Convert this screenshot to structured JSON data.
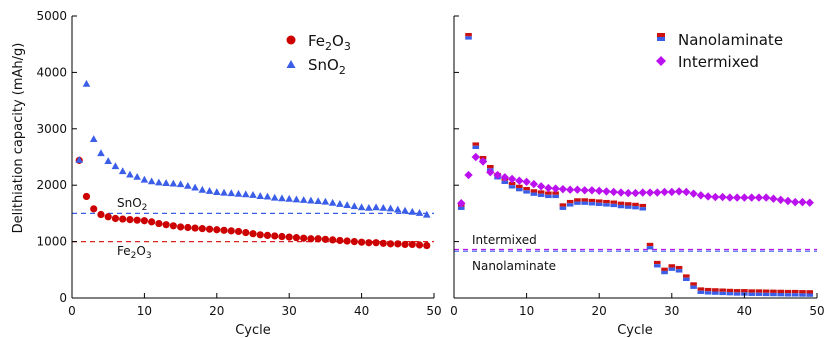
{
  "chart_data": [
    {
      "type": "scatter",
      "ylabel": "Delithiation capacity (mAh/g)",
      "xlabel": "Cycle",
      "xlim": [
        0,
        50
      ],
      "ylim": [
        0,
        5000
      ],
      "xticks": [
        "0",
        "10",
        "20",
        "30",
        "40",
        "50"
      ],
      "yticks": [
        "0",
        "1000",
        "2000",
        "3000",
        "4000",
        "5000"
      ],
      "legend_position": "top-right",
      "series": [
        {
          "name_base": "Fe",
          "name_sub1": "2",
          "name_mid": "O",
          "name_sub2": "3",
          "marker": "circle",
          "color": "#cc0000",
          "x": [
            1,
            2,
            3,
            4,
            5,
            6,
            7,
            8,
            9,
            10,
            11,
            12,
            13,
            14,
            15,
            16,
            17,
            18,
            19,
            20,
            21,
            22,
            23,
            24,
            25,
            26,
            27,
            28,
            29,
            30,
            31,
            32,
            33,
            34,
            35,
            36,
            37,
            38,
            39,
            40,
            41,
            42,
            43,
            44,
            45,
            46,
            47,
            48,
            49
          ],
          "y": [
            2440,
            1800,
            1580,
            1480,
            1440,
            1410,
            1400,
            1390,
            1380,
            1370,
            1350,
            1320,
            1300,
            1280,
            1260,
            1250,
            1240,
            1230,
            1220,
            1210,
            1200,
            1190,
            1180,
            1160,
            1140,
            1120,
            1110,
            1100,
            1090,
            1080,
            1070,
            1060,
            1050,
            1050,
            1040,
            1030,
            1020,
            1010,
            1000,
            990,
            980,
            980,
            970,
            960,
            960,
            950,
            950,
            940,
            930
          ]
        },
        {
          "name_base": "SnO",
          "name_sub1": "2",
          "marker": "triangle",
          "color": "#3a5ee8",
          "x": [
            1,
            2,
            3,
            4,
            5,
            6,
            7,
            8,
            9,
            10,
            11,
            12,
            13,
            14,
            15,
            16,
            17,
            18,
            19,
            20,
            21,
            22,
            23,
            24,
            25,
            26,
            27,
            28,
            29,
            30,
            31,
            32,
            33,
            34,
            35,
            36,
            37,
            38,
            39,
            40,
            41,
            42,
            43,
            44,
            45,
            46,
            47,
            48,
            49
          ],
          "y": [
            2450,
            3800,
            2820,
            2570,
            2430,
            2340,
            2250,
            2190,
            2150,
            2100,
            2070,
            2050,
            2040,
            2030,
            2020,
            1990,
            1960,
            1920,
            1900,
            1880,
            1870,
            1860,
            1850,
            1840,
            1830,
            1810,
            1800,
            1780,
            1770,
            1760,
            1750,
            1740,
            1730,
            1720,
            1710,
            1690,
            1670,
            1650,
            1630,
            1610,
            1600,
            1610,
            1600,
            1590,
            1570,
            1550,
            1530,
            1510,
            1480
          ]
        }
      ],
      "reference_lines": [
        {
          "value": 1500,
          "color": "#3a5ee8",
          "label_base": "SnO",
          "label_sub": "2"
        },
        {
          "value": 1000,
          "color": "#dd2222",
          "label_base": "Fe",
          "label_sub1": "2",
          "label_mid": "O",
          "label_sub2": "3"
        }
      ]
    },
    {
      "type": "scatter",
      "xlabel": "Cycle",
      "xlim": [
        0,
        50
      ],
      "ylim": [
        0,
        5000
      ],
      "xticks": [
        "0",
        "10",
        "20",
        "30",
        "40",
        "50"
      ],
      "legend_position": "top-right",
      "series": [
        {
          "name": "Nanolaminate",
          "marker": "square",
          "color_top": "#cc1111",
          "color_bottom": "#3a5ee8",
          "x": [
            1,
            2,
            3,
            4,
            5,
            6,
            7,
            8,
            9,
            10,
            11,
            12,
            13,
            14,
            15,
            16,
            17,
            18,
            19,
            20,
            21,
            22,
            23,
            24,
            25,
            26,
            27,
            28,
            29,
            30,
            31,
            32,
            33,
            34,
            35,
            36,
            37,
            38,
            39,
            40,
            41,
            42,
            43,
            44,
            45,
            46,
            47,
            48,
            49
          ],
          "y": [
            1620,
            4640,
            2700,
            2460,
            2300,
            2160,
            2080,
            2000,
            1950,
            1910,
            1870,
            1850,
            1830,
            1830,
            1620,
            1680,
            1710,
            1710,
            1700,
            1690,
            1680,
            1670,
            1650,
            1640,
            1630,
            1610,
            920,
            600,
            480,
            540,
            510,
            360,
            220,
            130,
            120,
            115,
            110,
            105,
            100,
            100,
            95,
            95,
            92,
            90,
            88,
            85,
            85,
            82,
            80
          ]
        },
        {
          "name": "Intermixed",
          "marker": "diamond",
          "color": "#bb11ee",
          "x": [
            1,
            2,
            3,
            4,
            5,
            6,
            7,
            8,
            9,
            10,
            11,
            12,
            13,
            14,
            15,
            16,
            17,
            18,
            19,
            20,
            21,
            22,
            23,
            24,
            25,
            26,
            27,
            28,
            29,
            30,
            31,
            32,
            33,
            34,
            35,
            36,
            37,
            38,
            39,
            40,
            41,
            42,
            43,
            44,
            45,
            46,
            47,
            48,
            49
          ],
          "y": [
            1680,
            2180,
            2500,
            2420,
            2230,
            2180,
            2140,
            2110,
            2080,
            2060,
            2020,
            1980,
            1950,
            1940,
            1930,
            1920,
            1920,
            1910,
            1910,
            1900,
            1890,
            1880,
            1870,
            1860,
            1860,
            1870,
            1870,
            1870,
            1880,
            1880,
            1890,
            1880,
            1850,
            1820,
            1800,
            1790,
            1790,
            1780,
            1780,
            1780,
            1780,
            1780,
            1780,
            1760,
            1740,
            1720,
            1700,
            1700,
            1690
          ]
        }
      ],
      "reference_lines": [
        {
          "value": 860,
          "color": "#bb11ee",
          "label": "Intermixed"
        },
        {
          "value": 830,
          "color": "#3a5ee8",
          "label": "Nanolaminate"
        }
      ]
    }
  ]
}
